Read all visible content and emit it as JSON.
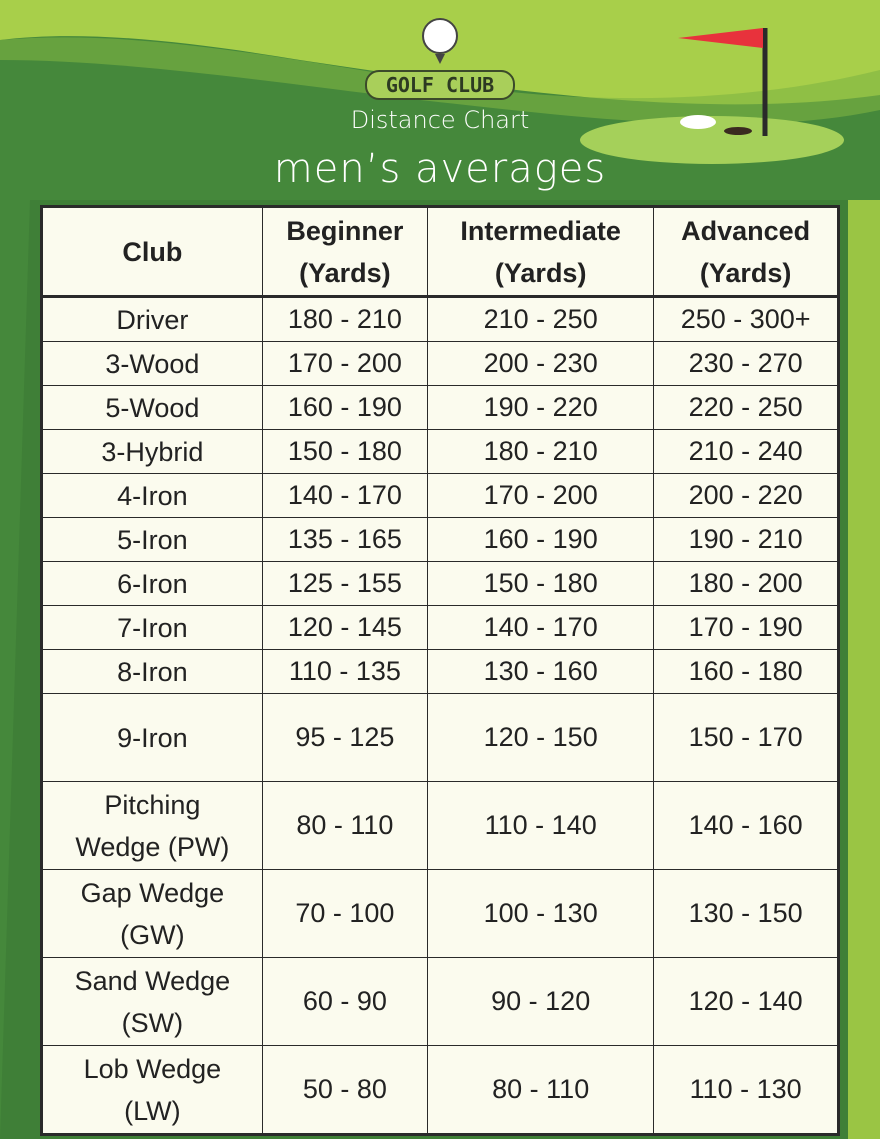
{
  "header": {
    "logo": "GOLF CLUB",
    "subtitle": "Distance Chart",
    "tagline": "men’s averages"
  },
  "table": {
    "columns": [
      [
        "Club"
      ],
      [
        "Beginner",
        "(Yards)"
      ],
      [
        "Intermediate",
        "(Yards)"
      ],
      [
        "Advanced",
        "(Yards)"
      ]
    ],
    "rows": [
      [
        [
          "Driver"
        ],
        "180 - 210",
        "210 - 250",
        "250 - 300+"
      ],
      [
        [
          "3-Wood"
        ],
        "170 - 200",
        "200 - 230",
        "230 - 270"
      ],
      [
        [
          "5-Wood"
        ],
        "160 - 190",
        "190 - 220",
        "220 - 250"
      ],
      [
        [
          "3-Hybrid"
        ],
        "150 - 180",
        "180 - 210",
        "210 - 240"
      ],
      [
        [
          "4-Iron"
        ],
        "140 - 170",
        "170 - 200",
        "200 - 220"
      ],
      [
        [
          "5-Iron"
        ],
        "135 - 165",
        "160 - 190",
        "190 - 210"
      ],
      [
        [
          "6-Iron"
        ],
        "125 - 155",
        "150 - 180",
        "180 - 200"
      ],
      [
        [
          "7-Iron"
        ],
        "120 - 145",
        "140 - 170",
        "170 - 190"
      ],
      [
        [
          "8-Iron"
        ],
        "110 - 135",
        "130 - 160",
        "160 - 180"
      ],
      [
        [
          "9-Iron"
        ],
        "95 - 125",
        "120 - 150",
        "150 - 170"
      ],
      [
        [
          "Pitching",
          "Wedge (PW)"
        ],
        "80 - 110",
        "110 - 140",
        "140 - 160"
      ],
      [
        [
          "Gap Wedge",
          "(GW)"
        ],
        "70 - 100",
        "100 - 130",
        "130 - 150"
      ],
      [
        [
          "Sand Wedge",
          "(SW)"
        ],
        "60 - 90",
        "90 - 120",
        "120 - 140"
      ],
      [
        [
          "Lob Wedge",
          "(LW)"
        ],
        "50 - 80",
        "80 - 110",
        "110 - 130"
      ]
    ]
  }
}
